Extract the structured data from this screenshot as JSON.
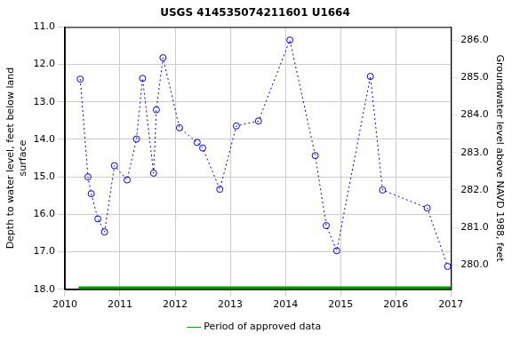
{
  "chart_data": {
    "type": "line",
    "title": "USGS 414535074211601 U1664",
    "y_label": "Depth to water level, feet below land surface",
    "y2_label": "Groundwater level above NAVD 1988, feet",
    "xlim": [
      2010,
      2017
    ],
    "xticks": [
      2010,
      2011,
      2012,
      2013,
      2014,
      2015,
      2016,
      2017
    ],
    "ylim": [
      11,
      18
    ],
    "yticks": [
      {
        "value": 11,
        "label": "11.0"
      },
      {
        "value": 12,
        "label": "12.0"
      },
      {
        "value": 13,
        "label": "13.0"
      },
      {
        "value": 14,
        "label": "14.0"
      },
      {
        "value": 15,
        "label": "15.0"
      },
      {
        "value": 16,
        "label": "16.0"
      },
      {
        "value": 17,
        "label": "17.0"
      },
      {
        "value": 18,
        "label": "18.0"
      }
    ],
    "y2lim": [
      279.35,
      286.35
    ],
    "y2ticks": [
      {
        "value": 280,
        "label": "280.0"
      },
      {
        "value": 281,
        "label": "281.0"
      },
      {
        "value": 282,
        "label": "282.0"
      },
      {
        "value": 283,
        "label": "283.0"
      },
      {
        "value": 284,
        "label": "284.0"
      },
      {
        "value": 285,
        "label": "285.0"
      },
      {
        "value": 286,
        "label": "286.0"
      }
    ],
    "log": false,
    "grid": true,
    "legend": "bottom",
    "series": [
      {
        "color": "#0000cc",
        "marker": "circle",
        "line_style": "dotted",
        "x": [
          2010.28,
          2010.42,
          2010.48,
          2010.6,
          2010.72,
          2010.9,
          2011.13,
          2011.3,
          2011.41,
          2011.61,
          2011.66,
          2011.78,
          2012.08,
          2012.4,
          2012.5,
          2012.81,
          2013.11,
          2013.51,
          2014.08,
          2014.54,
          2014.74,
          2014.93,
          2015.54,
          2015.76,
          2016.57,
          2016.94
        ],
        "values": [
          12.39,
          15.0,
          15.45,
          16.12,
          16.47,
          14.7,
          15.08,
          13.99,
          12.37,
          14.9,
          13.21,
          11.82,
          13.69,
          14.08,
          14.23,
          15.33,
          13.64,
          13.51,
          11.35,
          14.43,
          16.3,
          16.97,
          12.32,
          15.35,
          15.83,
          17.39
        ]
      },
      {
        "name": "Period of approved data",
        "color": "#009900",
        "marker": "none",
        "line_style": "solid",
        "x": [
          2010.25,
          2017
        ],
        "values": [
          17.97,
          17.97
        ]
      }
    ]
  }
}
